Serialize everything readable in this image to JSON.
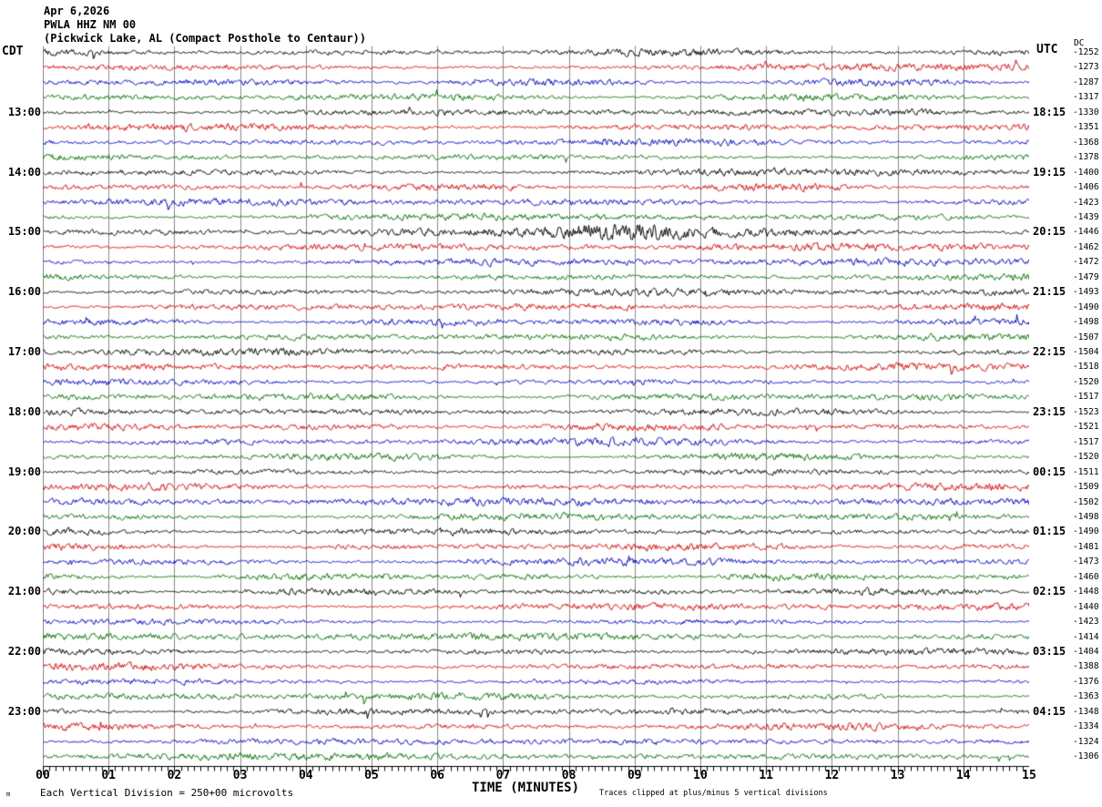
{
  "header": {
    "date": "Apr 6,2026",
    "station_line": "PWLA HHZ NM 00",
    "location_line": "(Pickwick Lake, AL (Compact Posthole to Centaur))"
  },
  "axes": {
    "left_timezone": "CDT",
    "right_timezone": "UTC",
    "dc_column": "DC",
    "x_title": "TIME (MINUTES)"
  },
  "footer": {
    "corner_mark": "m",
    "scale_note": "Each Vertical Division =  250+00 microvolts",
    "clip_note": "Traces clipped at plus/minus 5 vertical divisions"
  },
  "chart_data": {
    "type": "line",
    "title": "PWLA HHZ NM 00 helicorder — Pickwick Lake, AL (Compact Posthole to Centaur)",
    "xlabel": "TIME (MINUTES)",
    "x_range": [
      0,
      15
    ],
    "x_ticks": [
      "00",
      "01",
      "02",
      "03",
      "04",
      "05",
      "06",
      "07",
      "08",
      "09",
      "10",
      "11",
      "12",
      "13",
      "14",
      "15"
    ],
    "minor_tick_minutes": 0.1,
    "minutes_per_row": 15,
    "rows_per_hour": 4,
    "row_color_cycle": [
      "#000000",
      "#e00000",
      "#0000cc",
      "#007000"
    ],
    "grid_color": "#8a8a8a",
    "clip_divisions": 5,
    "legend_position": "none",
    "rows": [
      {
        "cdt": "",
        "utc": "",
        "dc": -1252
      },
      {
        "cdt": "",
        "utc": "",
        "dc": -1273
      },
      {
        "cdt": "",
        "utc": "",
        "dc": -1287
      },
      {
        "cdt": "",
        "utc": "",
        "dc": -1317
      },
      {
        "cdt": "13:00",
        "utc": "18:15",
        "dc": -1330
      },
      {
        "cdt": "",
        "utc": "",
        "dc": -1351
      },
      {
        "cdt": "",
        "utc": "",
        "dc": -1368
      },
      {
        "cdt": "",
        "utc": "",
        "dc": -1378
      },
      {
        "cdt": "14:00",
        "utc": "19:15",
        "dc": -1400
      },
      {
        "cdt": "",
        "utc": "",
        "dc": -1406
      },
      {
        "cdt": "",
        "utc": "",
        "dc": -1423
      },
      {
        "cdt": "",
        "utc": "",
        "dc": -1439
      },
      {
        "cdt": "15:00",
        "utc": "20:15",
        "dc": -1446
      },
      {
        "cdt": "",
        "utc": "",
        "dc": -1462
      },
      {
        "cdt": "",
        "utc": "",
        "dc": -1472
      },
      {
        "cdt": "",
        "utc": "",
        "dc": -1479
      },
      {
        "cdt": "16:00",
        "utc": "21:15",
        "dc": -1493
      },
      {
        "cdt": "",
        "utc": "",
        "dc": -1490
      },
      {
        "cdt": "",
        "utc": "",
        "dc": -1498
      },
      {
        "cdt": "",
        "utc": "",
        "dc": -1507
      },
      {
        "cdt": "17:00",
        "utc": "22:15",
        "dc": -1504
      },
      {
        "cdt": "",
        "utc": "",
        "dc": -1518
      },
      {
        "cdt": "",
        "utc": "",
        "dc": -1520
      },
      {
        "cdt": "",
        "utc": "",
        "dc": -1517
      },
      {
        "cdt": "18:00",
        "utc": "23:15",
        "dc": -1523
      },
      {
        "cdt": "",
        "utc": "",
        "dc": -1521
      },
      {
        "cdt": "",
        "utc": "",
        "dc": -1517
      },
      {
        "cdt": "",
        "utc": "",
        "dc": -1520
      },
      {
        "cdt": "19:00",
        "utc": "00:15",
        "dc": -1511
      },
      {
        "cdt": "",
        "utc": "",
        "dc": -1509
      },
      {
        "cdt": "",
        "utc": "",
        "dc": -1502
      },
      {
        "cdt": "",
        "utc": "",
        "dc": -1498
      },
      {
        "cdt": "20:00",
        "utc": "01:15",
        "dc": -1490
      },
      {
        "cdt": "",
        "utc": "",
        "dc": -1481
      },
      {
        "cdt": "",
        "utc": "",
        "dc": -1473
      },
      {
        "cdt": "",
        "utc": "",
        "dc": -1460
      },
      {
        "cdt": "21:00",
        "utc": "02:15",
        "dc": -1448
      },
      {
        "cdt": "",
        "utc": "",
        "dc": -1440
      },
      {
        "cdt": "",
        "utc": "",
        "dc": -1423
      },
      {
        "cdt": "",
        "utc": "",
        "dc": -1414
      },
      {
        "cdt": "22:00",
        "utc": "03:15",
        "dc": -1404
      },
      {
        "cdt": "",
        "utc": "",
        "dc": -1388
      },
      {
        "cdt": "",
        "utc": "",
        "dc": -1376
      },
      {
        "cdt": "",
        "utc": "",
        "dc": -1363
      },
      {
        "cdt": "23:00",
        "utc": "04:15",
        "dc": -1348
      },
      {
        "cdt": "",
        "utc": "",
        "dc": -1334
      },
      {
        "cdt": "",
        "utc": "",
        "dc": -1324
      },
      {
        "cdt": "",
        "utc": "",
        "dc": -1306
      }
    ],
    "event": {
      "description": "High-amplitude burst on the 15:00 CDT / 20:15 UTC black trace",
      "row_index": 12,
      "approx_start_minute": 7.5,
      "approx_peak_minute": 8.8,
      "approx_end_minute": 11
    }
  }
}
